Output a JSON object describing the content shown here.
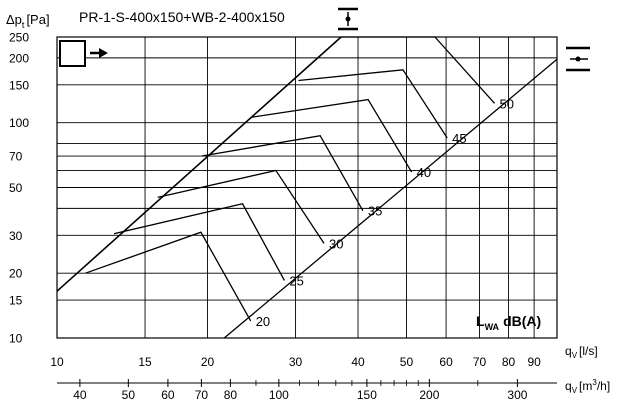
{
  "chart_data": {
    "type": "line",
    "title": "PR-1-S-400x150+WB-2-400x150",
    "ylabel_main": "Δp",
    "ylabel_sub": "t",
    "ylabel_unit": "[Pa]",
    "x_scale": "log",
    "y_scale": "log",
    "xlim_ls": [
      10,
      100
    ],
    "ylim": [
      10,
      250
    ],
    "grid": true,
    "x_ls_label_main": "q",
    "x_ls_label_sub": "V",
    "x_ls_label_unit": "[l/s]",
    "x_m3h_label_main": "q",
    "x_m3h_label_sub": "V",
    "x_m3h_label_unit": "[m",
    "x_m3h_label_sup": "3",
    "x_m3h_label_end": "/h]",
    "x_ls_ticks": [
      {
        "value": 10,
        "label": "10"
      },
      {
        "value": 15,
        "label": "15"
      },
      {
        "value": 20,
        "label": "20"
      },
      {
        "value": 30,
        "label": "30"
      },
      {
        "value": 40,
        "label": "40"
      },
      {
        "value": 50,
        "label": "50"
      },
      {
        "value": 60,
        "label": "60"
      },
      {
        "value": 70,
        "label": "70"
      },
      {
        "value": 80,
        "label": "80"
      },
      {
        "value": 90,
        "label": "90"
      }
    ],
    "x_ls_grid": [
      15,
      20,
      30,
      40,
      50,
      60,
      70,
      80,
      90
    ],
    "x_m3h_ticks": [
      {
        "value": 40,
        "label": "40"
      },
      {
        "value": 50,
        "label": "50"
      },
      {
        "value": 60,
        "label": "60"
      },
      {
        "value": 70,
        "label": "70"
      },
      {
        "value": 80,
        "label": "80"
      },
      {
        "value": 100,
        "label": "100"
      },
      {
        "value": 150,
        "label": "150"
      },
      {
        "value": 200,
        "label": "200"
      },
      {
        "value": 300,
        "label": "300"
      }
    ],
    "x_m3h_minor": [
      90,
      110,
      120,
      130,
      140,
      160,
      170,
      180,
      190,
      250
    ],
    "y_ticks": [
      {
        "value": 10,
        "label": "10"
      },
      {
        "value": 15,
        "label": "15"
      },
      {
        "value": 20,
        "label": "20"
      },
      {
        "value": 30,
        "label": "30"
      },
      {
        "value": 50,
        "label": "50"
      },
      {
        "value": 70,
        "label": "70"
      },
      {
        "value": 100,
        "label": "100"
      },
      {
        "value": 150,
        "label": "150"
      },
      {
        "value": 200,
        "label": "200"
      },
      {
        "value": 250,
        "label": "250"
      }
    ],
    "y_grid": [
      15,
      20,
      30,
      40,
      50,
      60,
      70,
      80,
      100,
      150,
      200
    ],
    "series": [
      {
        "label": "20",
        "points": [
          [
            11.4,
            20
          ],
          [
            19.4,
            31
          ],
          [
            24.4,
            12
          ]
        ]
      },
      {
        "label": "25",
        "points": [
          [
            13.0,
            30.5
          ],
          [
            23.5,
            42
          ],
          [
            28.5,
            18.5
          ]
        ]
      },
      {
        "label": "30",
        "points": [
          [
            15.9,
            45
          ],
          [
            27.4,
            60
          ],
          [
            34.2,
            27.5
          ]
        ]
      },
      {
        "label": "35",
        "points": [
          [
            19.5,
            70
          ],
          [
            33.6,
            87
          ],
          [
            40.9,
            39
          ]
        ]
      },
      {
        "label": "40",
        "points": [
          [
            24.5,
            106
          ],
          [
            41.9,
            128
          ],
          [
            51.2,
            59
          ]
        ]
      },
      {
        "label": "45",
        "points": [
          [
            30.4,
            157
          ],
          [
            49.2,
            176
          ],
          [
            60.3,
            85
          ]
        ]
      },
      {
        "label": "50",
        "points": [
          [
            37.0,
            250
          ],
          [
            57.0,
            252
          ],
          [
            75.0,
            123
          ]
        ]
      }
    ],
    "max_line": [
      [
        10,
        16.5
      ],
      [
        37.0,
        250
      ]
    ],
    "min_line": [
      [
        21.6,
        10
      ],
      [
        100,
        197
      ]
    ],
    "inlet_symbol": "square-with-arrow-right",
    "duct_symbols": [
      "vertical-damper-icon",
      "horizontal-damper-icon"
    ],
    "annotation": {
      "L": "L",
      "sub": "WA",
      "rest": "dB(A)"
    }
  }
}
